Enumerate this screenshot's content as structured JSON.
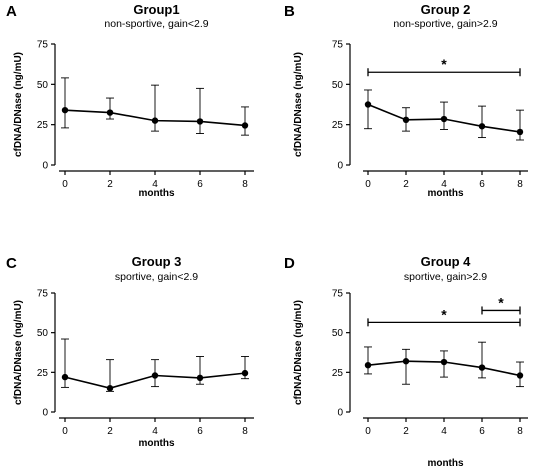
{
  "chart_data": [
    {
      "type": "line",
      "panel_letter": "A",
      "title": "Group1",
      "subtitle": "non-sportive, gain<2.9",
      "xlabel": "months",
      "ylabel": "cfDNA/DNase (ng/mU)",
      "x": [
        0,
        2,
        4,
        6,
        8
      ],
      "x_ticks": [
        "0",
        "2",
        "4",
        "6",
        "8"
      ],
      "y_ticks": [
        "0",
        "25",
        "50",
        "75"
      ],
      "xlim": [
        0,
        8
      ],
      "ylim": [
        0,
        75
      ],
      "series": [
        {
          "values": [
            34,
            32.5,
            27.5,
            27,
            24.5
          ],
          "error_low": [
            23,
            28.5,
            21,
            19.5,
            18.5
          ],
          "error_high": [
            54,
            41.5,
            49.5,
            47.5,
            36
          ]
        }
      ],
      "significance": []
    },
    {
      "type": "line",
      "panel_letter": "B",
      "title": "Group 2",
      "subtitle": "non-sportive, gain>2.9",
      "xlabel": "months",
      "ylabel": "cfDNA/DNase (ng/mU)",
      "x": [
        0,
        2,
        4,
        6,
        8
      ],
      "x_ticks": [
        "0",
        "2",
        "4",
        "6",
        "8"
      ],
      "y_ticks": [
        "0",
        "25",
        "50",
        "75"
      ],
      "xlim": [
        0,
        8
      ],
      "ylim": [
        0,
        75
      ],
      "series": [
        {
          "values": [
            37.5,
            28,
            28.5,
            24,
            20.5
          ],
          "error_low": [
            22.5,
            21,
            22,
            17,
            15.5
          ],
          "error_high": [
            46.5,
            35.5,
            39,
            36.5,
            34
          ]
        }
      ],
      "significance": [
        {
          "from": 0,
          "to": 8,
          "y": 57.5,
          "label": "*"
        }
      ]
    },
    {
      "type": "line",
      "panel_letter": "C",
      "title": "Group 3",
      "subtitle": "sportive, gain<2.9",
      "xlabel": "months",
      "ylabel": "cfDNA/DNase (ng/mU)",
      "x": [
        0,
        2,
        4,
        6,
        8
      ],
      "x_ticks": [
        "0",
        "2",
        "4",
        "6",
        "8"
      ],
      "y_ticks": [
        "0",
        "25",
        "50",
        "75"
      ],
      "xlim": [
        0,
        8
      ],
      "ylim": [
        0,
        75
      ],
      "series": [
        {
          "values": [
            22,
            15,
            23,
            21.5,
            24.5
          ],
          "error_low": [
            15.5,
            13,
            16,
            17.5,
            21
          ],
          "error_high": [
            46,
            33,
            33,
            35,
            35
          ]
        }
      ],
      "significance": []
    },
    {
      "type": "line",
      "panel_letter": "D",
      "title": "Group 4",
      "subtitle": "sportive, gain>2.9",
      "xlabel": "months",
      "ylabel": "cfDNA/DNase (ng/mU)",
      "x": [
        0,
        2,
        4,
        6,
        8
      ],
      "x_ticks": [
        "0",
        "2",
        "4",
        "6",
        "8"
      ],
      "y_ticks": [
        "0",
        "25",
        "50",
        "75"
      ],
      "xlim": [
        0,
        8
      ],
      "ylim": [
        0,
        75
      ],
      "series": [
        {
          "values": [
            29.5,
            32,
            31.5,
            28,
            23
          ],
          "error_low": [
            24,
            17.5,
            22,
            21.5,
            16
          ],
          "error_high": [
            41,
            39.5,
            38.5,
            44,
            31.5
          ]
        }
      ],
      "significance": [
        {
          "from": 0,
          "to": 8,
          "y": 56.5,
          "label": "*"
        },
        {
          "from": 6,
          "to": 8,
          "y": 64,
          "label": "*"
        }
      ]
    }
  ]
}
